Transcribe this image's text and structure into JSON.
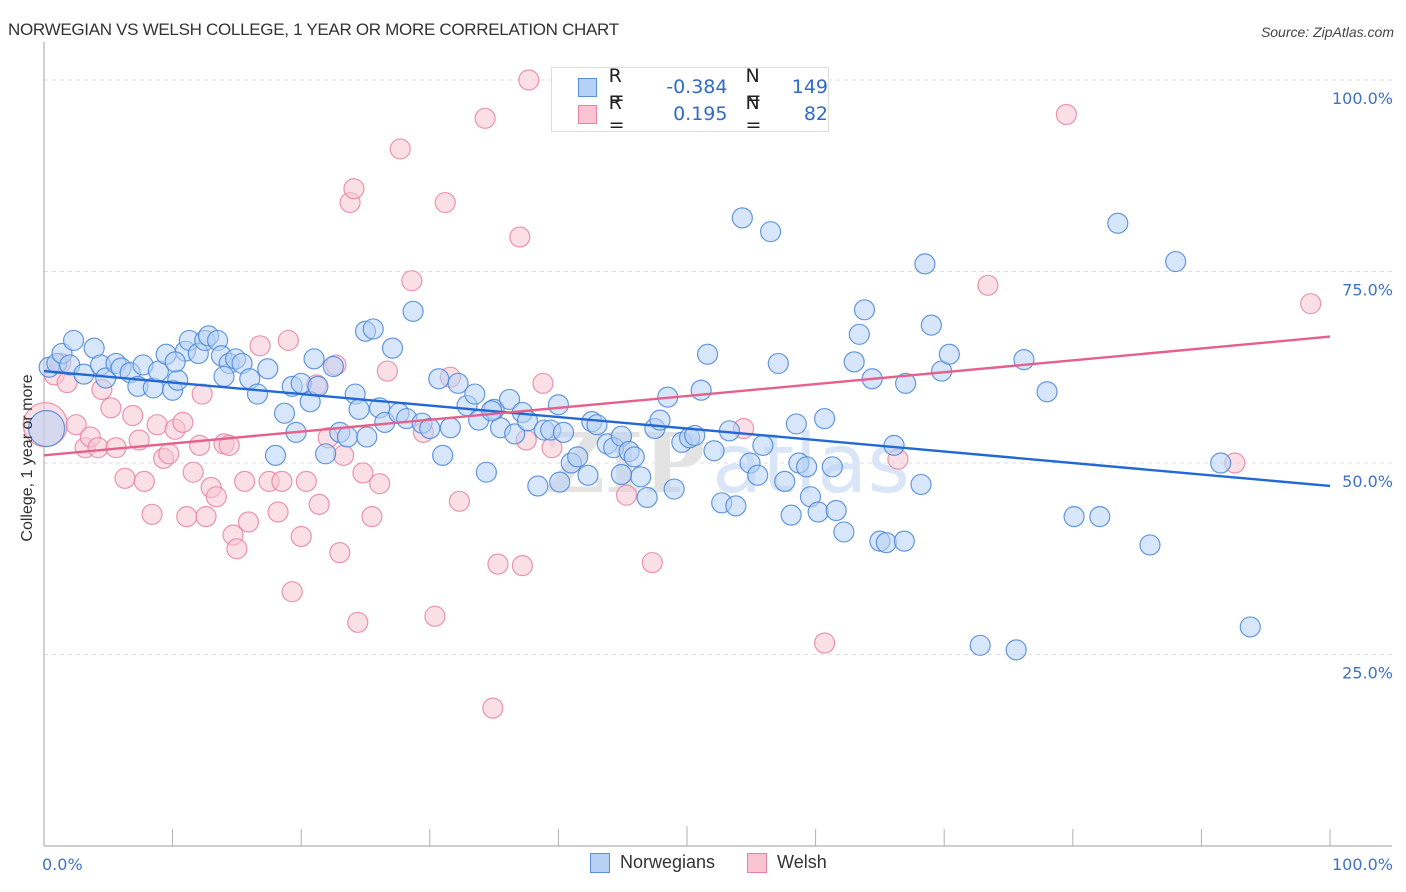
{
  "header": {
    "title": "NORWEGIAN VS WELSH COLLEGE, 1 YEAR OR MORE CORRELATION CHART",
    "source": "Source: ZipAtlas.com"
  },
  "legend": {
    "rows": [
      {
        "r_label": "R =",
        "r_value": "-0.384",
        "n_label": "N =",
        "n_value": "149"
      },
      {
        "r_label": "R =",
        "r_value": "0.195",
        "n_label": "N =",
        "n_value": "82"
      }
    ]
  },
  "colors": {
    "norwegians_fill": "#b7d1f5",
    "norwegians_stroke": "#4a86d8",
    "norwegians_line": "#2269d3",
    "welsh_fill": "#f8c4d3",
    "welsh_stroke": "#e8839f",
    "welsh_line": "#e5608b",
    "tick_text": "#3d72c9",
    "grid": "#dddddd"
  },
  "chart_data": {
    "type": "scatter",
    "title": "NORWEGIAN VS WELSH COLLEGE, 1 YEAR OR MORE CORRELATION CHART",
    "xlabel": "",
    "ylabel": "College, 1 year or more",
    "xlim": [
      0,
      100
    ],
    "ylim": [
      0,
      100
    ],
    "x_tick_labels": [
      "0.0%",
      "100.0%"
    ],
    "y_ticks": [
      25,
      50,
      75,
      100
    ],
    "y_tick_labels": [
      "25.0%",
      "50.0%",
      "75.0%",
      "100.0%"
    ],
    "grid": true,
    "legend_position": "bottom",
    "watermark": "ZIPatlas",
    "series": [
      {
        "name": "Norwegians",
        "R": -0.384,
        "N": 149,
        "trend": {
          "x": [
            0,
            100
          ],
          "y": [
            62.0,
            47.0
          ]
        },
        "points": [
          [
            0.2,
            54.5
          ],
          [
            0.4,
            62.5
          ],
          [
            1.0,
            63.0
          ],
          [
            1.4,
            64.3
          ],
          [
            2.0,
            62.8
          ],
          [
            2.3,
            66.0
          ],
          [
            3.1,
            61.6
          ],
          [
            3.9,
            65.0
          ],
          [
            4.4,
            62.8
          ],
          [
            4.8,
            61.1
          ],
          [
            5.6,
            63.0
          ],
          [
            6.0,
            62.4
          ],
          [
            6.7,
            61.8
          ],
          [
            7.3,
            60.0
          ],
          [
            7.7,
            62.8
          ],
          [
            8.5,
            59.8
          ],
          [
            8.9,
            62.0
          ],
          [
            9.5,
            64.2
          ],
          [
            10.0,
            59.5
          ],
          [
            10.4,
            60.8
          ],
          [
            11.0,
            64.6
          ],
          [
            11.3,
            66.0
          ],
          [
            12.0,
            64.3
          ],
          [
            12.5,
            66.0
          ],
          [
            12.8,
            66.6
          ],
          [
            13.5,
            66.0
          ],
          [
            13.8,
            64.0
          ],
          [
            14.4,
            63.0
          ],
          [
            14.9,
            63.6
          ],
          [
            15.4,
            63.0
          ],
          [
            16.0,
            61.0
          ],
          [
            16.6,
            59.0
          ],
          [
            17.4,
            62.3
          ],
          [
            18.0,
            51.0
          ],
          [
            18.7,
            56.5
          ],
          [
            19.3,
            60.0
          ],
          [
            19.6,
            54.0
          ],
          [
            20.0,
            60.4
          ],
          [
            20.7,
            58.0
          ],
          [
            21.3,
            60.0
          ],
          [
            21.9,
            51.2
          ],
          [
            22.5,
            62.6
          ],
          [
            23.0,
            54.0
          ],
          [
            23.6,
            53.4
          ],
          [
            24.2,
            59.0
          ],
          [
            24.5,
            57.0
          ],
          [
            25.0,
            67.2
          ],
          [
            25.6,
            67.5
          ],
          [
            26.1,
            57.2
          ],
          [
            26.5,
            55.3
          ],
          [
            27.1,
            65.0
          ],
          [
            27.6,
            56.5
          ],
          [
            28.2,
            55.8
          ],
          [
            28.7,
            69.8
          ],
          [
            29.4,
            55.2
          ],
          [
            30.0,
            54.5
          ],
          [
            30.7,
            61.0
          ],
          [
            31.0,
            51.0
          ],
          [
            31.6,
            54.6
          ],
          [
            32.2,
            60.4
          ],
          [
            32.9,
            57.5
          ],
          [
            33.5,
            59.0
          ],
          [
            33.8,
            55.6
          ],
          [
            34.4,
            48.8
          ],
          [
            35.0,
            57.0
          ],
          [
            35.5,
            54.6
          ],
          [
            36.2,
            58.3
          ],
          [
            36.6,
            53.8
          ],
          [
            37.2,
            56.6
          ],
          [
            37.6,
            55.5
          ],
          [
            38.4,
            47.0
          ],
          [
            38.9,
            54.3
          ],
          [
            39.4,
            54.3
          ],
          [
            40.0,
            57.6
          ],
          [
            40.4,
            54.0
          ],
          [
            41.0,
            50.0
          ],
          [
            41.5,
            50.8
          ],
          [
            42.3,
            48.4
          ],
          [
            42.6,
            55.4
          ],
          [
            43.0,
            55.0
          ],
          [
            43.8,
            52.5
          ],
          [
            44.3,
            52.0
          ],
          [
            44.9,
            53.5
          ],
          [
            45.5,
            51.5
          ],
          [
            45.9,
            50.8
          ],
          [
            46.4,
            48.2
          ],
          [
            46.9,
            45.5
          ],
          [
            47.5,
            54.5
          ],
          [
            47.9,
            55.6
          ],
          [
            48.5,
            58.6
          ],
          [
            49.0,
            46.6
          ],
          [
            49.6,
            52.7
          ],
          [
            50.2,
            53.3
          ],
          [
            50.6,
            53.6
          ],
          [
            51.1,
            59.5
          ],
          [
            51.6,
            64.2
          ],
          [
            52.1,
            51.6
          ],
          [
            52.7,
            44.8
          ],
          [
            53.3,
            54.2
          ],
          [
            53.8,
            44.4
          ],
          [
            54.3,
            82.0
          ],
          [
            54.9,
            50.0
          ],
          [
            55.5,
            48.4
          ],
          [
            55.9,
            52.3
          ],
          [
            56.5,
            80.2
          ],
          [
            57.1,
            63.0
          ],
          [
            57.6,
            47.6
          ],
          [
            58.1,
            43.2
          ],
          [
            58.7,
            50.0
          ],
          [
            59.3,
            49.5
          ],
          [
            59.6,
            45.6
          ],
          [
            60.2,
            43.6
          ],
          [
            60.7,
            55.8
          ],
          [
            61.3,
            49.5
          ],
          [
            61.6,
            43.8
          ],
          [
            62.2,
            41.0
          ],
          [
            63.0,
            63.2
          ],
          [
            63.4,
            66.8
          ],
          [
            63.8,
            70.0
          ],
          [
            64.4,
            61.0
          ],
          [
            65.0,
            39.8
          ],
          [
            65.5,
            39.6
          ],
          [
            66.1,
            52.3
          ],
          [
            66.9,
            39.8
          ],
          [
            67.0,
            60.4
          ],
          [
            68.2,
            47.2
          ],
          [
            68.5,
            76.0
          ],
          [
            69.0,
            68.0
          ],
          [
            69.8,
            62.0
          ],
          [
            70.4,
            64.2
          ],
          [
            72.8,
            26.2
          ],
          [
            75.6,
            25.6
          ],
          [
            76.2,
            63.5
          ],
          [
            78.0,
            59.3
          ],
          [
            80.1,
            43.0
          ],
          [
            82.1,
            43.0
          ],
          [
            83.5,
            81.3
          ],
          [
            86.0,
            39.3
          ],
          [
            88.0,
            76.3
          ],
          [
            91.5,
            50.0
          ],
          [
            93.8,
            28.6
          ],
          [
            10.2,
            63.2
          ],
          [
            21.0,
            63.6
          ],
          [
            14.0,
            61.3
          ],
          [
            25.1,
            53.4
          ],
          [
            34.8,
            56.8
          ],
          [
            44.9,
            48.5
          ],
          [
            58.5,
            55.1
          ],
          [
            40.1,
            47.5
          ]
        ]
      },
      {
        "name": "Welsh",
        "R": 0.195,
        "N": 82,
        "trend": {
          "x": [
            0,
            100
          ],
          "y": [
            51.0,
            66.5
          ]
        },
        "points": [
          [
            0.1,
            55.0
          ],
          [
            0.8,
            61.5
          ],
          [
            1.3,
            63.0
          ],
          [
            1.8,
            60.5
          ],
          [
            2.5,
            55.0
          ],
          [
            3.2,
            52.0
          ],
          [
            3.6,
            53.4
          ],
          [
            4.2,
            52.0
          ],
          [
            4.5,
            59.6
          ],
          [
            5.2,
            57.2
          ],
          [
            5.6,
            52.0
          ],
          [
            6.3,
            48.0
          ],
          [
            6.9,
            56.2
          ],
          [
            7.4,
            53.0
          ],
          [
            7.8,
            47.6
          ],
          [
            8.4,
            43.3
          ],
          [
            8.8,
            55.0
          ],
          [
            9.3,
            50.6
          ],
          [
            9.7,
            51.2
          ],
          [
            10.2,
            54.4
          ],
          [
            10.8,
            55.3
          ],
          [
            11.1,
            43.0
          ],
          [
            11.6,
            48.8
          ],
          [
            12.1,
            52.3
          ],
          [
            12.6,
            43.0
          ],
          [
            13.0,
            46.8
          ],
          [
            13.4,
            45.6
          ],
          [
            14.0,
            52.5
          ],
          [
            14.4,
            52.3
          ],
          [
            14.7,
            40.6
          ],
          [
            15.0,
            38.8
          ],
          [
            15.6,
            47.6
          ],
          [
            15.9,
            42.3
          ],
          [
            16.8,
            65.3
          ],
          [
            17.5,
            47.6
          ],
          [
            18.2,
            43.6
          ],
          [
            18.5,
            47.6
          ],
          [
            19.0,
            66.0
          ],
          [
            19.3,
            33.2
          ],
          [
            20.0,
            40.4
          ],
          [
            20.4,
            47.6
          ],
          [
            21.4,
            44.6
          ],
          [
            22.1,
            53.3
          ],
          [
            22.7,
            62.8
          ],
          [
            23.0,
            38.3
          ],
          [
            23.3,
            51.0
          ],
          [
            23.8,
            84.0
          ],
          [
            24.1,
            85.8
          ],
          [
            24.4,
            29.2
          ],
          [
            24.8,
            48.7
          ],
          [
            25.5,
            43.0
          ],
          [
            26.1,
            47.3
          ],
          [
            26.7,
            62.0
          ],
          [
            27.7,
            91.0
          ],
          [
            28.6,
            73.8
          ],
          [
            29.5,
            54.0
          ],
          [
            30.4,
            30.0
          ],
          [
            31.2,
            84.0
          ],
          [
            31.6,
            61.2
          ],
          [
            32.3,
            45.0
          ],
          [
            34.3,
            95.0
          ],
          [
            34.9,
            18.0
          ],
          [
            35.3,
            36.8
          ],
          [
            37.0,
            79.5
          ],
          [
            37.2,
            36.6
          ],
          [
            37.7,
            100.0
          ],
          [
            38.8,
            60.4
          ],
          [
            40.5,
            100.0
          ],
          [
            45.3,
            45.8
          ],
          [
            47.3,
            37.0
          ],
          [
            50.6,
            95.5
          ],
          [
            54.4,
            54.5
          ],
          [
            60.7,
            26.5
          ],
          [
            66.4,
            50.5
          ],
          [
            73.4,
            73.2
          ],
          [
            79.5,
            95.5
          ],
          [
            92.6,
            50.0
          ],
          [
            98.5,
            70.8
          ],
          [
            37.5,
            53.0
          ],
          [
            21.2,
            60.2
          ],
          [
            39.5,
            52.0
          ],
          [
            12.3,
            59.0
          ]
        ]
      }
    ]
  },
  "bottom_legend": {
    "items": [
      {
        "label": "Norwegians"
      },
      {
        "label": "Welsh"
      }
    ]
  },
  "axes": {
    "x_left_label": "0.0%",
    "x_right_label": "100.0%",
    "y_title": "College, 1 year or more"
  }
}
